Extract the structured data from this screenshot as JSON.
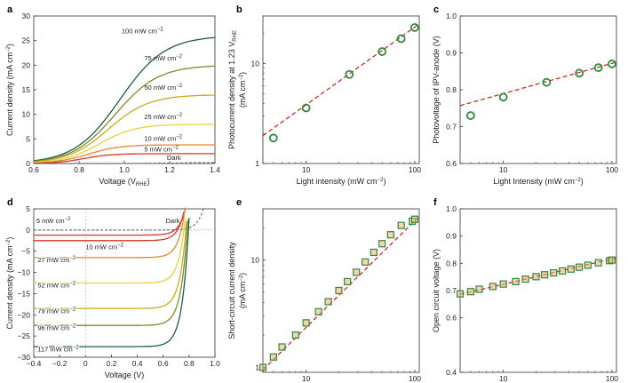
{
  "colors": {
    "dark_green": "#1f5e3a",
    "olive": "#7c8a2e",
    "gold": "#c8aa18",
    "yellow": "#e6d23a",
    "orange": "#e08a2c",
    "red": "#d9352f",
    "dark_dash": "#5a6e88",
    "marker_green": "#2f8a3e",
    "fit_red": "#d02a22",
    "fill_orange": "#f0b070"
  },
  "chart_data": [
    {
      "panel": "a",
      "type": "line",
      "xlabel": "Voltage (V",
      "xlabel_sub": "RHE",
      "xlabel_tail": ")",
      "ylabel": "Current density (mA cm−2)",
      "xlim": [
        0.6,
        1.4
      ],
      "ylim": [
        0,
        30
      ],
      "xticks": [
        "0.6",
        "0.8",
        "1.0",
        "1.2",
        "1.4"
      ],
      "yticks": [
        "0",
        "5",
        "10",
        "15",
        "20",
        "25",
        "30"
      ],
      "series": [
        {
          "name": "100 mW cm−2",
          "sat": 26.0,
          "mid": 0.98,
          "w": 0.1
        },
        {
          "name": "75 mW cm−2",
          "sat": 20.0,
          "mid": 0.96,
          "w": 0.095
        },
        {
          "name": "50 mW cm−2",
          "sat": 14.0,
          "mid": 0.93,
          "w": 0.09
        },
        {
          "name": "25 mW cm−2",
          "sat": 8.0,
          "mid": 0.89,
          "w": 0.08
        },
        {
          "name": "10 mW cm−2",
          "sat": 3.8,
          "mid": 0.84,
          "w": 0.07
        },
        {
          "name": "5 mW cm−2",
          "sat": 2.0,
          "mid": 0.82,
          "w": 0.06
        },
        {
          "name": "Dark",
          "sat": 0.25,
          "mid": 1.3,
          "w": 0.1
        }
      ]
    },
    {
      "panel": "b",
      "type": "scatter",
      "xscale": "log",
      "yscale": "log",
      "xlabel": "Light intensity (mW cm−2)",
      "ylabel": "Photocurrent density at 1.23 V",
      "ylabel_sub": "RHE",
      "ylabel2": "(mA cm−2)",
      "xlim": [
        4,
        110
      ],
      "ylim": [
        1,
        30
      ],
      "xticks": [
        "10",
        "100"
      ],
      "yticks": [
        "1",
        "10"
      ],
      "x": [
        5,
        10,
        25,
        50,
        75,
        100
      ],
      "y": [
        1.8,
        3.6,
        7.8,
        13.2,
        17.8,
        23.0
      ],
      "fit": {
        "x": [
          4,
          110
        ],
        "y": [
          1.9,
          25.0
        ]
      }
    },
    {
      "panel": "c",
      "type": "scatter",
      "xscale": "log",
      "xlabel": "Light Intensity (mW cm−2)",
      "ylabel": "Photovoltage of IPV-anode (V)",
      "xlim": [
        4,
        110
      ],
      "ylim": [
        0.6,
        1.0
      ],
      "xticks": [
        "10",
        "100"
      ],
      "yticks": [
        "0.6",
        "0.7",
        "0.8",
        "0.9",
        "1.0"
      ],
      "x": [
        5,
        10,
        25,
        50,
        75,
        100
      ],
      "y": [
        0.73,
        0.78,
        0.82,
        0.845,
        0.86,
        0.87
      ],
      "fit": {
        "x": [
          4,
          110
        ],
        "y": [
          0.757,
          0.875
        ]
      }
    },
    {
      "panel": "d",
      "type": "line",
      "xlabel": "Voltage (V)",
      "ylabel": "Current density (mA cm−2)",
      "xlim": [
        -0.4,
        1.0
      ],
      "ylim": [
        -30,
        5
      ],
      "xticks": [
        "−0.4",
        "−0.2",
        "0",
        "0.2",
        "0.4",
        "0.6",
        "0.8",
        "1.0"
      ],
      "yticks": [
        "5",
        "0",
        "−5",
        "−10",
        "−15",
        "−20",
        "−25",
        "−30"
      ],
      "series": [
        {
          "name": "Dark",
          "jsc": 0.0,
          "voc": 0.78
        },
        {
          "name": "5 mW cm−2",
          "jsc": -1.2,
          "voc": 0.69
        },
        {
          "name": "10 mW cm−2",
          "jsc": -2.5,
          "voc": 0.71
        },
        {
          "name": "27 mW cm−2",
          "jsc": -6.5,
          "voc": 0.74
        },
        {
          "name": "52 mW cm−2",
          "jsc": -12.5,
          "voc": 0.76
        },
        {
          "name": "79 mW cm−2",
          "jsc": -18.5,
          "voc": 0.775
        },
        {
          "name": "96 mW cm−2",
          "jsc": -22.5,
          "voc": 0.785
        },
        {
          "name": "117 mW cm−2",
          "jsc": -27.5,
          "voc": 0.795
        }
      ]
    },
    {
      "panel": "e",
      "type": "scatter",
      "xscale": "log",
      "yscale": "log",
      "xlabel": "Light intensity (mW cm−2)",
      "ylabel": "Short-circuit current density",
      "ylabel2": "(mA cm−2)",
      "xlim": [
        4,
        110
      ],
      "ylim": [
        0.9,
        30
      ],
      "xticks": [
        "10",
        "100"
      ],
      "yticks": [
        "1",
        "10"
      ],
      "x": [
        4,
        5,
        6,
        8,
        10,
        13,
        16,
        20,
        24,
        29,
        35,
        42,
        50,
        60,
        75,
        95,
        100
      ],
      "y": [
        1.0,
        1.25,
        1.55,
        2.0,
        2.6,
        3.3,
        4.1,
        5.2,
        6.3,
        7.7,
        9.6,
        11.8,
        14.2,
        17.2,
        21.0,
        23.0,
        24.0
      ],
      "fit": {
        "x": [
          4,
          110
        ],
        "y": [
          0.95,
          25.5
        ]
      }
    },
    {
      "panel": "f",
      "type": "scatter",
      "xscale": "log",
      "xlabel": "Light intensity (mW cm−2)",
      "ylabel": "Open circuit voltage (V)",
      "xlim": [
        4,
        110
      ],
      "ylim": [
        0.4,
        1.0
      ],
      "xticks": [
        "10",
        "100"
      ],
      "yticks": [
        "0.4",
        "0.6",
        "0.7",
        "0.8",
        "0.9",
        "1.0"
      ],
      "x": [
        4,
        5,
        6,
        8,
        10,
        13,
        16,
        20,
        24,
        29,
        35,
        42,
        50,
        60,
        75,
        95,
        100
      ],
      "y": [
        0.688,
        0.696,
        0.705,
        0.715,
        0.724,
        0.733,
        0.742,
        0.751,
        0.758,
        0.765,
        0.772,
        0.779,
        0.786,
        0.793,
        0.802,
        0.81,
        0.812
      ],
      "fit": {
        "x": [
          4,
          110
        ],
        "y": [
          0.686,
          0.82
        ]
      }
    }
  ]
}
